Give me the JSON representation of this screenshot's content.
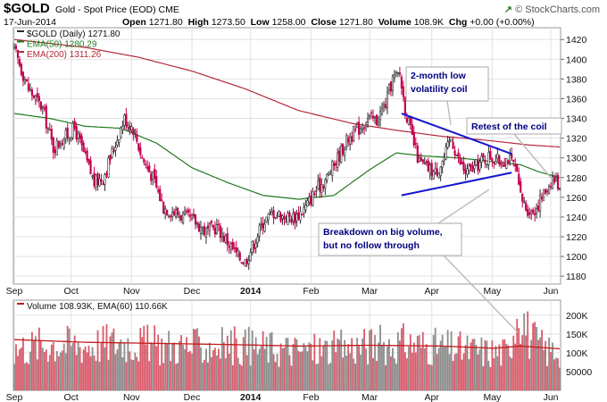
{
  "header": {
    "symbol": "$GOLD",
    "description": "Gold - Spot Price (EOD)",
    "exchange": "CME",
    "date": "17-Jun-2014",
    "open_label": "Open",
    "open": "1271.80",
    "high_label": "High",
    "high": "1273.50",
    "low_label": "Low",
    "low": "1258.00",
    "close_label": "Close",
    "close": "1271.80",
    "volume_label": "Volume",
    "volume": "108.9K",
    "chg_label": "Chg",
    "chg": "+0.00 (+0.00%)",
    "watermark": "© StockCharts.com",
    "watermark_icon": "chart-up-icon"
  },
  "colors": {
    "up": "#2b2b2b",
    "down": "#c4004f",
    "ema50": "#1e7b1e",
    "ema200": "#b32a3a",
    "annotation_line": "#1515d0",
    "annotation_text": "#000080",
    "vol_up": "#8c8c8c",
    "vol_down": "#d95a6a",
    "vol_ema": "#c21b1b",
    "grid": "#e2e2e2"
  },
  "chart_data": [
    {
      "type": "candlestick",
      "legend": [
        {
          "label": "$GOLD (Daily) 1271.80",
          "color": "#2b2b2b"
        },
        {
          "label": "EMA(50) 1280.29",
          "color": "#1e7b1e"
        },
        {
          "label": "EMA(200) 1311.26",
          "color": "#b32a3a"
        }
      ],
      "x_tick_labels": [
        "Sep",
        "Oct",
        "Nov",
        "Dec",
        "2014",
        "Feb",
        "Mar",
        "Apr",
        "May",
        "Jun"
      ],
      "y_ticks": [
        1180,
        1200,
        1220,
        1240,
        1260,
        1280,
        1300,
        1320,
        1340,
        1360,
        1380,
        1400,
        1420
      ],
      "ylim": [
        1172,
        1432
      ],
      "grid": true,
      "price_keypoints": [
        [
          0,
          1410
        ],
        [
          4,
          1390
        ],
        [
          8,
          1370
        ],
        [
          12,
          1360
        ],
        [
          16,
          1350
        ],
        [
          22,
          1310
        ],
        [
          28,
          1320
        ],
        [
          34,
          1330
        ],
        [
          40,
          1300
        ],
        [
          45,
          1275
        ],
        [
          50,
          1280
        ],
        [
          56,
          1310
        ],
        [
          62,
          1340
        ],
        [
          67,
          1330
        ],
        [
          72,
          1300
        ],
        [
          78,
          1280
        ],
        [
          84,
          1250
        ],
        [
          90,
          1245
        ],
        [
          96,
          1240
        ],
        [
          102,
          1235
        ],
        [
          108,
          1225
        ],
        [
          114,
          1230
        ],
        [
          120,
          1215
        ],
        [
          126,
          1200
        ],
        [
          130,
          1195
        ],
        [
          134,
          1210
        ],
        [
          140,
          1235
        ],
        [
          146,
          1245
        ],
        [
          152,
          1240
        ],
        [
          158,
          1240
        ],
        [
          164,
          1250
        ],
        [
          170,
          1268
        ],
        [
          176,
          1280
        ],
        [
          182,
          1300
        ],
        [
          188,
          1320
        ],
        [
          194,
          1330
        ],
        [
          199,
          1340
        ],
        [
          204,
          1338
        ],
        [
          209,
          1355
        ],
        [
          213,
          1380
        ],
        [
          217,
          1385
        ],
        [
          220,
          1350
        ],
        [
          224,
          1320
        ],
        [
          228,
          1295
        ],
        [
          232,
          1290
        ],
        [
          237,
          1285
        ],
        [
          242,
          1300
        ],
        [
          246,
          1320
        ],
        [
          250,
          1298
        ],
        [
          254,
          1285
        ],
        [
          259,
          1290
        ],
        [
          264,
          1298
        ],
        [
          268,
          1302
        ],
        [
          273,
          1296
        ],
        [
          278,
          1300
        ],
        [
          282,
          1290
        ],
        [
          285,
          1260
        ],
        [
          288,
          1250
        ],
        [
          291,
          1245
        ],
        [
          294,
          1250
        ],
        [
          297,
          1260
        ],
        [
          300,
          1270
        ],
        [
          303,
          1280
        ],
        [
          307,
          1272
        ]
      ],
      "ema50_keypoints": [
        [
          0,
          1345
        ],
        [
          20,
          1340
        ],
        [
          40,
          1332
        ],
        [
          60,
          1330
        ],
        [
          80,
          1315
        ],
        [
          100,
          1290
        ],
        [
          120,
          1275
        ],
        [
          140,
          1262
        ],
        [
          160,
          1258
        ],
        [
          180,
          1262
        ],
        [
          200,
          1288
        ],
        [
          215,
          1305
        ],
        [
          230,
          1302
        ],
        [
          250,
          1300
        ],
        [
          270,
          1296
        ],
        [
          285,
          1293
        ],
        [
          295,
          1286
        ],
        [
          307,
          1280
        ]
      ],
      "ema200_keypoints": [
        [
          0,
          1420
        ],
        [
          40,
          1412
        ],
        [
          70,
          1402
        ],
        [
          100,
          1388
        ],
        [
          130,
          1370
        ],
        [
          160,
          1348
        ],
        [
          190,
          1335
        ],
        [
          215,
          1328
        ],
        [
          240,
          1322
        ],
        [
          265,
          1318
        ],
        [
          290,
          1313
        ],
        [
          307,
          1311
        ]
      ],
      "annotations": [
        {
          "text": "2-month low volatility coil",
          "lines": [
            "2-month low",
            "volatility coil"
          ]
        },
        {
          "text": "Retest of the coil",
          "lines": [
            "Retest of the coil"
          ]
        },
        {
          "text": "Breakdown on big volume, but no follow through",
          "lines": [
            "Breakdown on big volume,",
            "but no follow through"
          ]
        }
      ],
      "trendlines": [
        {
          "from": [
            218,
            1345
          ],
          "to": [
            280,
            1304
          ]
        },
        {
          "from": [
            218,
            1262
          ],
          "to": [
            280,
            1285
          ]
        }
      ]
    },
    {
      "type": "bar",
      "legend": [
        {
          "label": "Volume 108.93K, EMA(60) 110.66K",
          "color": "#c21b1b"
        }
      ],
      "x_tick_labels": [
        "Sep",
        "Oct",
        "Nov",
        "Dec",
        "2014",
        "Feb",
        "Mar",
        "Apr",
        "May",
        "Jun"
      ],
      "y_tick_labels": [
        "200K",
        "150K",
        "100K",
        "50000"
      ],
      "y_ticks": [
        200000,
        150000,
        100000,
        50000
      ],
      "ylim": [
        0,
        240000
      ],
      "volume_keypoints": [
        [
          0,
          110000
        ],
        [
          20,
          125000
        ],
        [
          40,
          120000
        ],
        [
          60,
          130000
        ],
        [
          80,
          120000
        ],
        [
          100,
          115000
        ],
        [
          120,
          120000
        ],
        [
          140,
          115000
        ],
        [
          160,
          105000
        ],
        [
          180,
          110000
        ],
        [
          200,
          120000
        ],
        [
          220,
          125000
        ],
        [
          240,
          115000
        ],
        [
          260,
          105000
        ],
        [
          278,
          100000
        ],
        [
          284,
          235000
        ],
        [
          290,
          140000
        ],
        [
          300,
          105000
        ],
        [
          307,
          108930
        ]
      ],
      "ema_keypoints": [
        [
          0,
          135000
        ],
        [
          40,
          128000
        ],
        [
          80,
          125000
        ],
        [
          120,
          122000
        ],
        [
          160,
          118000
        ],
        [
          200,
          120000
        ],
        [
          240,
          118000
        ],
        [
          270,
          112000
        ],
        [
          285,
          118000
        ],
        [
          307,
          110660
        ]
      ]
    }
  ]
}
